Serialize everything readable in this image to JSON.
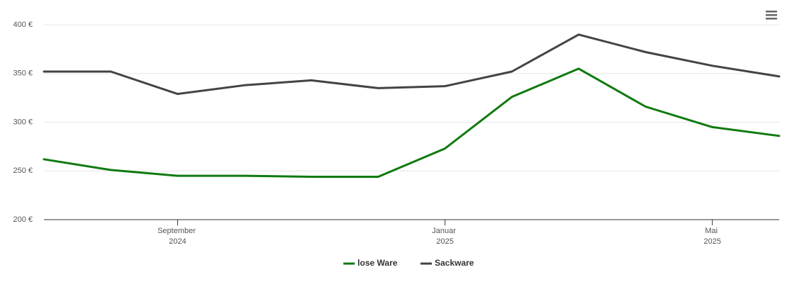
{
  "chart_data": {
    "type": "line",
    "x": [
      "2024-07",
      "2024-08",
      "2024-09",
      "2024-10",
      "2024-11",
      "2024-12",
      "2025-01",
      "2025-02",
      "2025-03",
      "2025-04",
      "2025-05",
      "2025-06"
    ],
    "xlim": [
      "2024-07",
      "2025-06"
    ],
    "xticks": [
      {
        "value": "2024-09",
        "label": "September 2024"
      },
      {
        "value": "2025-01",
        "label": "Januar 2025"
      },
      {
        "value": "2025-05",
        "label": "Mai 2025"
      }
    ],
    "ylim": [
      200,
      400
    ],
    "yticks": [
      {
        "value": 200,
        "label": "200 €"
      },
      {
        "value": 250,
        "label": "250 €"
      },
      {
        "value": 300,
        "label": "300 €"
      },
      {
        "value": 350,
        "label": "350 €"
      },
      {
        "value": 400,
        "label": "400 €"
      }
    ],
    "grid": true,
    "legend": "bottom",
    "series": [
      {
        "name": "lose Ware",
        "color": "#0f7a0f",
        "values": [
          262,
          251,
          245,
          245,
          244,
          244,
          273,
          326,
          355,
          316,
          295,
          286
        ]
      },
      {
        "name": "Sackware",
        "color": "#434348",
        "values": [
          352,
          352,
          329,
          338,
          343,
          335,
          337,
          352,
          390,
          372,
          358,
          347
        ]
      }
    ]
  }
}
